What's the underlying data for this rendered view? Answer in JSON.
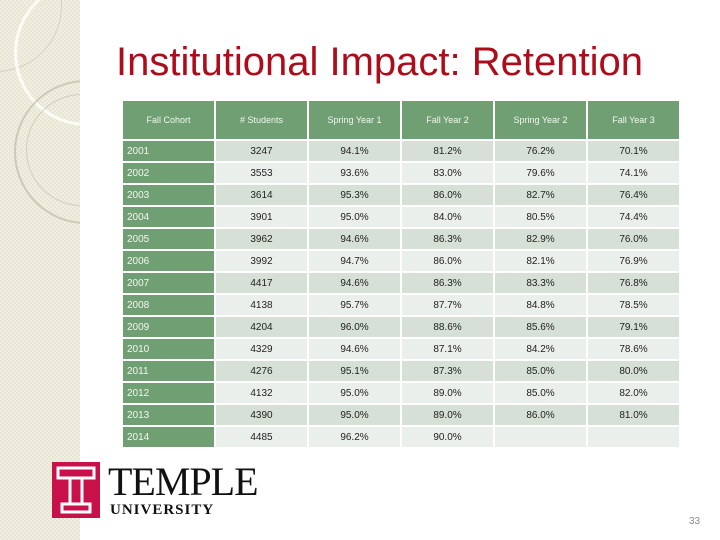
{
  "slide": {
    "title": "Institutional Impact: Retention",
    "page_number": "33"
  },
  "logo": {
    "name": "TEMPLE",
    "subtitle": "UNIVERSITY",
    "mark": "T",
    "mark_color": "#c8104a"
  },
  "colors": {
    "title": "#ad0d1a",
    "header_bg": "#709f74",
    "row_odd": "#d6e0d6",
    "row_even": "#ebefeb"
  },
  "table": {
    "headers": [
      "Fall Cohort",
      "# Students",
      "Spring Year 1",
      "Fall Year 2",
      "Spring Year 2",
      "Fall Year 3"
    ],
    "rows": [
      [
        "2001",
        "3247",
        "94.1%",
        "81.2%",
        "76.2%",
        "70.1%"
      ],
      [
        "2002",
        "3553",
        "93.6%",
        "83.0%",
        "79.6%",
        "74.1%"
      ],
      [
        "2003",
        "3614",
        "95.3%",
        "86.0%",
        "82.7%",
        "76.4%"
      ],
      [
        "2004",
        "3901",
        "95.0%",
        "84.0%",
        "80.5%",
        "74.4%"
      ],
      [
        "2005",
        "3962",
        "94.6%",
        "86.3%",
        "82.9%",
        "76.0%"
      ],
      [
        "2006",
        "3992",
        "94.7%",
        "86.0%",
        "82.1%",
        "76.9%"
      ],
      [
        "2007",
        "4417",
        "94.6%",
        "86.3%",
        "83.3%",
        "76.8%"
      ],
      [
        "2008",
        "4138",
        "95.7%",
        "87.7%",
        "84.8%",
        "78.5%"
      ],
      [
        "2009",
        "4204",
        "96.0%",
        "88.6%",
        "85.6%",
        "79.1%"
      ],
      [
        "2010",
        "4329",
        "94.6%",
        "87.1%",
        "84.2%",
        "78.6%"
      ],
      [
        "2011",
        "4276",
        "95.1%",
        "87.3%",
        "85.0%",
        "80.0%"
      ],
      [
        "2012",
        "4132",
        "95.0%",
        "89.0%",
        "85.0%",
        "82.0%"
      ],
      [
        "2013",
        "4390",
        "95.0%",
        "89.0%",
        "86.0%",
        "81.0%"
      ],
      [
        "2014",
        "4485",
        "96.2%",
        "90.0%",
        "",
        ""
      ]
    ]
  }
}
